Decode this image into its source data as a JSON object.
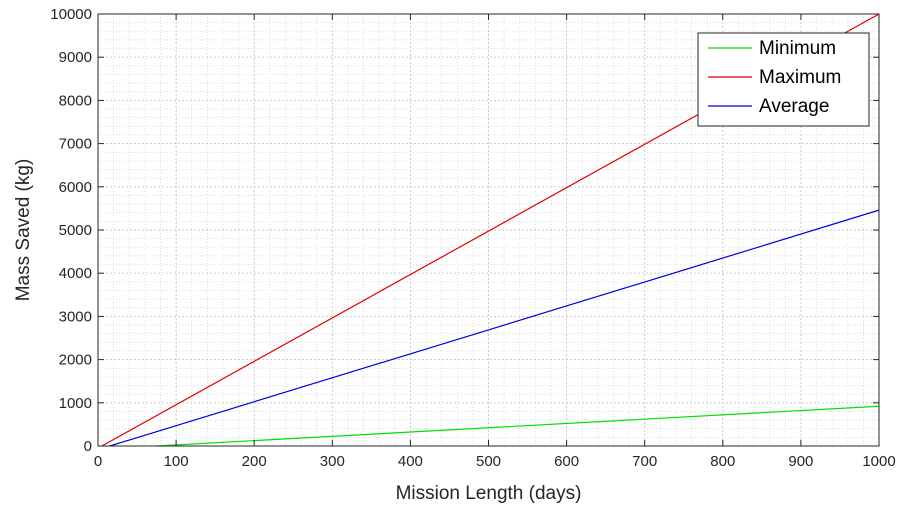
{
  "chart_data": {
    "type": "line",
    "xlabel": "Mission Length (days)",
    "ylabel": "Mass Saved (kg)",
    "xlim": [
      0,
      1000
    ],
    "ylim": [
      0,
      10000
    ],
    "xticks": [
      0,
      100,
      200,
      300,
      400,
      500,
      600,
      700,
      800,
      900,
      1000
    ],
    "yticks": [
      0,
      1000,
      2000,
      3000,
      4000,
      5000,
      6000,
      7000,
      8000,
      9000,
      10000
    ],
    "grid": true,
    "minor_grid": true,
    "legend_position": "top-right",
    "series": [
      {
        "name": "Minimum",
        "color": "#00e000",
        "x": [
          75,
          1000
        ],
        "y": [
          0,
          920
        ]
      },
      {
        "name": "Maximum",
        "color": "#e00000",
        "x": [
          5,
          1000
        ],
        "y": [
          0,
          10000
        ]
      },
      {
        "name": "Average",
        "color": "#0000e0",
        "x": [
          15,
          1000
        ],
        "y": [
          0,
          5460
        ]
      }
    ]
  }
}
